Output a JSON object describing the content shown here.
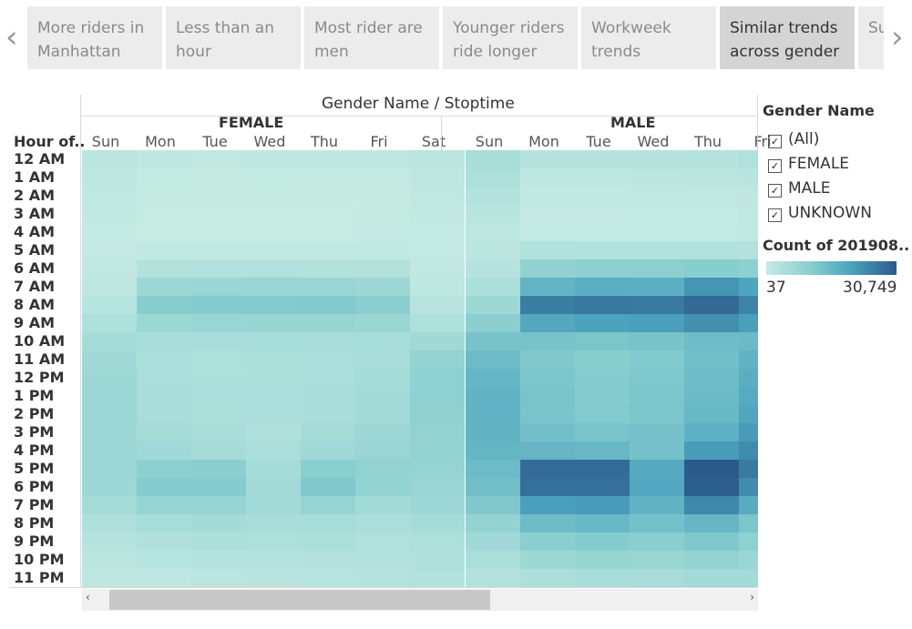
{
  "nav": {
    "prev": "‹",
    "next": "›"
  },
  "tabs": [
    {
      "label": "More riders in Manhattan",
      "active": false
    },
    {
      "label": "Less than an hour",
      "active": false
    },
    {
      "label": "Most rider are men",
      "active": false
    },
    {
      "label": "Younger riders ride longer",
      "active": false
    },
    {
      "label": "Workweek trends",
      "active": false
    },
    {
      "label": "Similar trends across gender",
      "active": true
    },
    {
      "label": "Su W",
      "active": false
    }
  ],
  "filter": {
    "title": "Gender Name",
    "items": [
      {
        "label": "(All)",
        "checked": true
      },
      {
        "label": "FEMALE",
        "checked": true
      },
      {
        "label": "MALE",
        "checked": true
      },
      {
        "label": "UNKNOWN",
        "checked": true
      }
    ]
  },
  "color_legend": {
    "title": "Count of 201908..",
    "min_label": "37",
    "max_label": "30,749",
    "min_color": "#c6ebe3",
    "max_color": "#2b5a8a"
  },
  "scrollbar": {
    "left": "‹",
    "right": "›"
  },
  "chart_data": {
    "type": "heatmap",
    "title": "Gender Name / Stoptime",
    "y_header": "Hour of..",
    "hours": [
      "12 AM",
      "1 AM",
      "2 AM",
      "3 AM",
      "4 AM",
      "5 AM",
      "6 AM",
      "7 AM",
      "8 AM",
      "9 AM",
      "10 AM",
      "11 AM",
      "12 PM",
      "1 PM",
      "2 PM",
      "3 PM",
      "4 PM",
      "5 PM",
      "6 PM",
      "7 PM",
      "8 PM",
      "9 PM",
      "10 PM",
      "11 PM"
    ],
    "groups": [
      {
        "name": "FEMALE",
        "days": [
          "Sun",
          "Mon",
          "Tue",
          "Wed",
          "Thu",
          "Fri",
          "Sat"
        ]
      },
      {
        "name": "MALE",
        "days": [
          "Sun",
          "Mon",
          "Tue",
          "Wed",
          "Thu",
          "Fri"
        ]
      }
    ],
    "color_range": [
      37,
      30749
    ],
    "series": [
      {
        "name": "FEMALE",
        "values": [
          [
            2000,
            1300,
            1100,
            1300,
            1300,
            1500,
            2000
          ],
          [
            1600,
            500,
            450,
            500,
            600,
            700,
            1600
          ],
          [
            1200,
            300,
            300,
            300,
            350,
            450,
            1200
          ],
          [
            800,
            200,
            200,
            200,
            200,
            300,
            800
          ],
          [
            500,
            200,
            200,
            200,
            200,
            250,
            500
          ],
          [
            600,
            800,
            900,
            900,
            900,
            800,
            500
          ],
          [
            1000,
            3300,
            3500,
            3500,
            3400,
            3200,
            1000
          ],
          [
            1600,
            7200,
            7600,
            7800,
            7700,
            6700,
            1500
          ],
          [
            2700,
            10500,
            11000,
            11200,
            11500,
            10000,
            2600
          ],
          [
            4000,
            7300,
            7800,
            8000,
            8000,
            7500,
            4000
          ],
          [
            5500,
            5000,
            5000,
            5200,
            5300,
            5400,
            6500
          ],
          [
            6500,
            4600,
            4300,
            4500,
            4700,
            5000,
            8800
          ],
          [
            7000,
            4800,
            4400,
            4500,
            4800,
            5500,
            9500
          ],
          [
            7300,
            5000,
            4700,
            4700,
            5000,
            5900,
            9300
          ],
          [
            7300,
            5000,
            4500,
            4800,
            5100,
            6200,
            9000
          ],
          [
            7300,
            5500,
            5000,
            3800,
            5500,
            6800,
            8800
          ],
          [
            7300,
            6400,
            5500,
            4800,
            6400,
            7800,
            8600
          ],
          [
            7100,
            9800,
            10000,
            5500,
            10200,
            8800,
            8300
          ],
          [
            6700,
            11100,
            11000,
            5700,
            11800,
            8600,
            7800
          ],
          [
            5500,
            8400,
            8100,
            6000,
            8300,
            6300,
            6800
          ],
          [
            3800,
            5400,
            5700,
            5300,
            5400,
            4600,
            5500
          ],
          [
            2800,
            3800,
            4400,
            4000,
            4500,
            3600,
            4300
          ],
          [
            2000,
            2700,
            3000,
            3000,
            3200,
            3200,
            3800
          ],
          [
            1300,
            1600,
            2000,
            2100,
            2500,
            2800,
            3300
          ]
        ]
      },
      {
        "name": "MALE",
        "values": [
          [
            5000,
            2800,
            2800,
            2800,
            3000,
            3600
          ],
          [
            4200,
            1600,
            1600,
            1700,
            1900,
            2300
          ],
          [
            3300,
            900,
            900,
            1000,
            1100,
            1400
          ],
          [
            2300,
            600,
            600,
            700,
            700,
            1000
          ],
          [
            1500,
            700,
            700,
            700,
            700,
            900
          ],
          [
            1700,
            3400,
            3600,
            3600,
            3600,
            3300
          ],
          [
            2800,
            9000,
            9800,
            9800,
            10600,
            9600
          ],
          [
            4500,
            16200,
            17400,
            17200,
            22000,
            19500
          ],
          [
            7000,
            25500,
            26500,
            26000,
            28500,
            24500
          ],
          [
            10000,
            18800,
            20000,
            20500,
            23000,
            20500
          ],
          [
            13000,
            13000,
            12500,
            13000,
            14500,
            15000
          ],
          [
            14800,
            11800,
            10500,
            11500,
            13800,
            16500
          ],
          [
            15800,
            12300,
            11000,
            12000,
            14500,
            17500
          ],
          [
            16400,
            12800,
            11000,
            12300,
            15000,
            18200
          ],
          [
            16600,
            12700,
            11200,
            12500,
            15300,
            19400
          ],
          [
            16400,
            13800,
            12800,
            13200,
            17000,
            21000
          ],
          [
            15900,
            16000,
            15400,
            13200,
            21000,
            23500
          ],
          [
            14800,
            28000,
            28000,
            18500,
            30700,
            26000
          ],
          [
            13800,
            27500,
            27500,
            19000,
            30000,
            23500
          ],
          [
            11800,
            20500,
            21000,
            16500,
            24000,
            18000
          ],
          [
            8500,
            14500,
            15500,
            13500,
            15800,
            12500
          ],
          [
            6400,
            10000,
            11000,
            10200,
            11800,
            9500
          ],
          [
            4800,
            7000,
            8000,
            7700,
            8800,
            7400
          ],
          [
            3300,
            4400,
            5200,
            5300,
            6100,
            5900
          ]
        ]
      }
    ]
  }
}
